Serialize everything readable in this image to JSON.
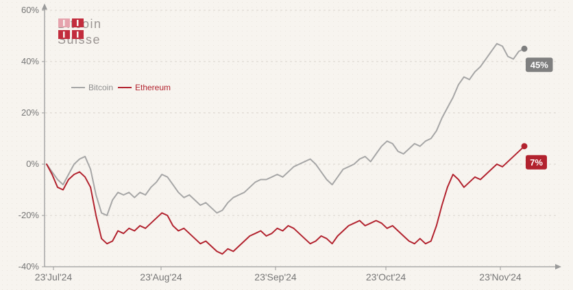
{
  "page": {
    "background": "#f7f4ef"
  },
  "logo": {
    "line1": "Bitcoin",
    "line2": "Suisse",
    "mark_primary": "#c22c3d",
    "mark_secondary": "#e6a3ad",
    "text_color": "#9a9492"
  },
  "chart_data": {
    "type": "line",
    "title": "",
    "ylim": [
      -40,
      60
    ],
    "y_ticks": [
      60,
      40,
      20,
      0,
      -20,
      -40
    ],
    "y_tick_labels": [
      "60%",
      "40%",
      "20%",
      "0%",
      "-20%",
      "-40%"
    ],
    "x_tick_labels": [
      "23'Jul'24",
      "23'Aug'24",
      "23'Sep'24",
      "23'Oct'24",
      "23'Nov'24"
    ],
    "grid": "horizontal-dashed",
    "legend": {
      "position": "upper-left-inside"
    },
    "series": [
      {
        "name": "Bitcoin",
        "color": "#a6a6a6",
        "dot_color": "#7e7e7e",
        "badge_color": "#7f7f7f",
        "label_color": "#8f8f8f",
        "end_label": "45%",
        "values": [
          0,
          -3,
          -6,
          -8,
          -4,
          0,
          2,
          3,
          -2,
          -12,
          -19,
          -20,
          -14,
          -11,
          -12,
          -11,
          -13,
          -11,
          -12,
          -9,
          -7,
          -4,
          -5,
          -8,
          -11,
          -13,
          -12,
          -14,
          -16,
          -15,
          -17,
          -19,
          -18,
          -15,
          -13,
          -12,
          -11,
          -9,
          -7,
          -6,
          -6,
          -5,
          -4,
          -5,
          -3,
          -1,
          0,
          1,
          2,
          0,
          -3,
          -6,
          -8,
          -5,
          -2,
          -1,
          0,
          2,
          3,
          1,
          4,
          7,
          9,
          8,
          5,
          4,
          6,
          8,
          7,
          9,
          10,
          13,
          18,
          22,
          26,
          31,
          34,
          33,
          36,
          38,
          41,
          44,
          47,
          46,
          42,
          41,
          44,
          45
        ]
      },
      {
        "name": "Ethereum",
        "color": "#b2222e",
        "dot_color": "#b2222e",
        "badge_color": "#b2222e",
        "label_color": "#b2222e",
        "end_label": "7%",
        "values": [
          0,
          -4,
          -9,
          -10,
          -6,
          -4,
          -3,
          -5,
          -9,
          -20,
          -29,
          -31,
          -30,
          -26,
          -27,
          -25,
          -26,
          -24,
          -25,
          -23,
          -21,
          -19,
          -20,
          -24,
          -26,
          -25,
          -27,
          -29,
          -31,
          -30,
          -32,
          -34,
          -35,
          -33,
          -34,
          -32,
          -30,
          -28,
          -27,
          -26,
          -28,
          -27,
          -25,
          -26,
          -24,
          -25,
          -27,
          -29,
          -31,
          -30,
          -28,
          -29,
          -31,
          -28,
          -26,
          -24,
          -23,
          -22,
          -24,
          -23,
          -22,
          -23,
          -25,
          -24,
          -26,
          -28,
          -30,
          -31,
          -29,
          -31,
          -30,
          -24,
          -16,
          -9,
          -4,
          -6,
          -9,
          -7,
          -5,
          -6,
          -4,
          -2,
          0,
          -1,
          1,
          3,
          5,
          7
        ]
      }
    ]
  },
  "axes": {
    "color": "#9a9a9a",
    "label_color": "#757575",
    "gridline_color": "#d8d4cc"
  }
}
